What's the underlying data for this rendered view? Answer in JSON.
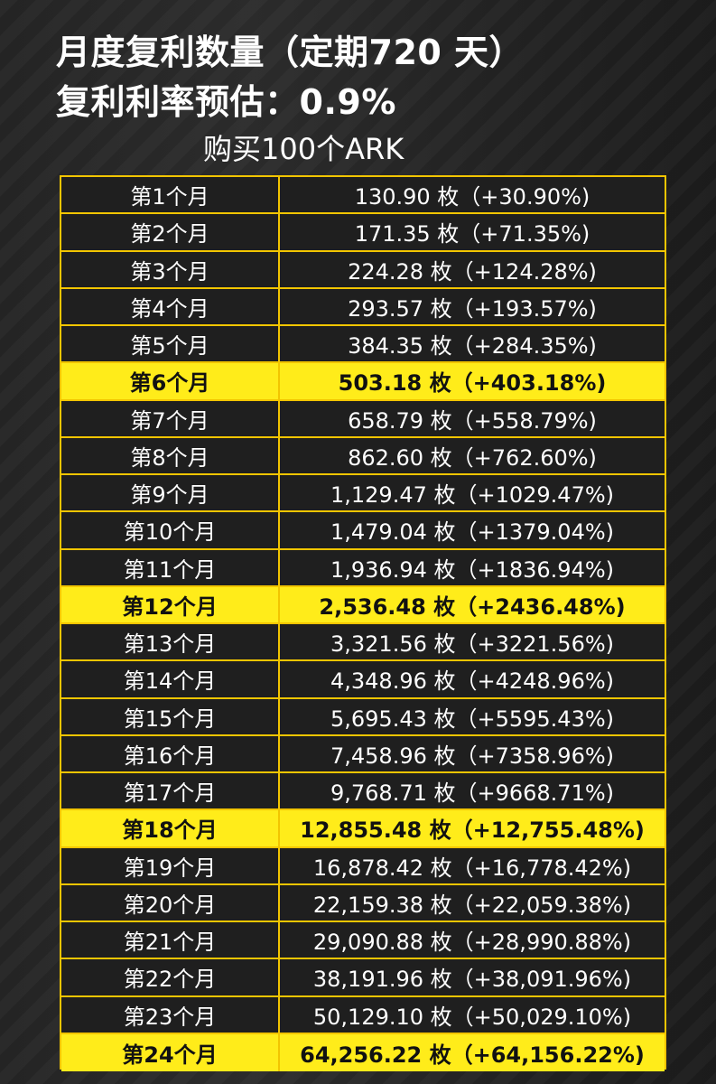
{
  "header": {
    "title_line1": "月度复利数量（定期720 天）",
    "title_line2": "复利利率预估：0.9%",
    "subtitle": "购买100个ARK"
  },
  "colors": {
    "border": "#f2c500",
    "highlight_bg": "#ffec1a",
    "background": "#262626",
    "text": "#ffffff"
  },
  "table": {
    "rows": [
      {
        "month": "第1个月",
        "value": "130.90 枚（+30.90%)",
        "highlight": false
      },
      {
        "month": "第2个月",
        "value": "171.35 枚（+71.35%)",
        "highlight": false
      },
      {
        "month": "第3个月",
        "value": "224.28 枚（+124.28%)",
        "highlight": false
      },
      {
        "month": "第4个月",
        "value": "293.57 枚（+193.57%)",
        "highlight": false
      },
      {
        "month": "第5个月",
        "value": "384.35 枚（+284.35%)",
        "highlight": false
      },
      {
        "month": "第6个月",
        "value": "503.18 枚（+403.18%)",
        "highlight": true
      },
      {
        "month": "第7个月",
        "value": "658.79 枚（+558.79%)",
        "highlight": false
      },
      {
        "month": "第8个月",
        "value": "862.60 枚（+762.60%)",
        "highlight": false
      },
      {
        "month": "第9个月",
        "value": "1,129.47 枚（+1029.47%)",
        "highlight": false
      },
      {
        "month": "第10个月",
        "value": "1,479.04 枚（+1379.04%)",
        "highlight": false
      },
      {
        "month": "第11个月",
        "value": "1,936.94 枚（+1836.94%)",
        "highlight": false
      },
      {
        "month": "第12个月",
        "value": "2,536.48 枚（+2436.48%)",
        "highlight": true
      },
      {
        "month": "第13个月",
        "value": "3,321.56 枚（+3221.56%)",
        "highlight": false
      },
      {
        "month": "第14个月",
        "value": "4,348.96 枚（+4248.96%)",
        "highlight": false
      },
      {
        "month": "第15个月",
        "value": "5,695.43 枚（+5595.43%)",
        "highlight": false
      },
      {
        "month": "第16个月",
        "value": "7,458.96 枚（+7358.96%)",
        "highlight": false
      },
      {
        "month": "第17个月",
        "value": "9,768.71 枚（+9668.71%)",
        "highlight": false
      },
      {
        "month": "第18个月",
        "value": "12,855.48 枚（+12,755.48%)",
        "highlight": true
      },
      {
        "month": "第19个月",
        "value": "16,878.42 枚（+16,778.42%)",
        "highlight": false
      },
      {
        "month": "第20个月",
        "value": "22,159.38 枚（+22,059.38%)",
        "highlight": false
      },
      {
        "month": "第21个月",
        "value": "29,090.88 枚（+28,990.88%)",
        "highlight": false
      },
      {
        "month": "第22个月",
        "value": "38,191.96 枚（+38,091.96%)",
        "highlight": false
      },
      {
        "month": "第23个月",
        "value": "50,129.10 枚（+50,029.10%)",
        "highlight": false
      },
      {
        "month": "第24个月",
        "value": "64,256.22 枚（+64,156.22%)",
        "highlight": true
      }
    ]
  }
}
